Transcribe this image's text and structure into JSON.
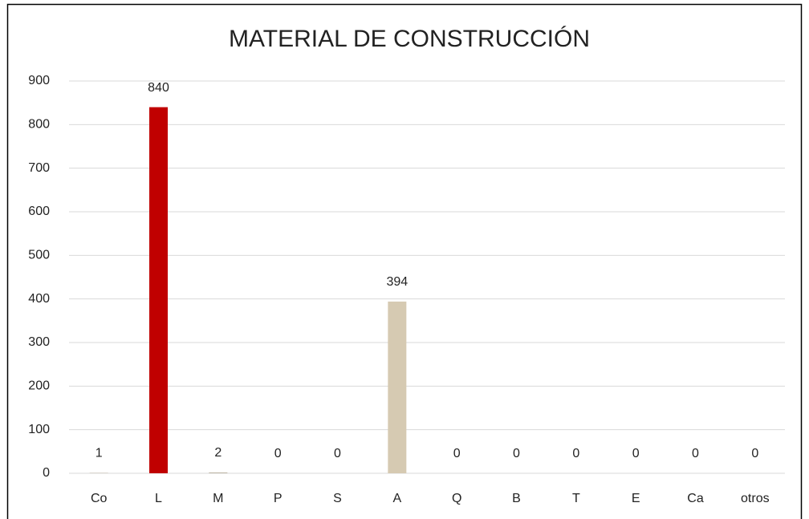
{
  "chart_data": {
    "type": "bar",
    "title": "MATERIAL DE CONSTRUCCIÓN",
    "categories": [
      "Co",
      "L",
      "M",
      "P",
      "S",
      "A",
      "Q",
      "B",
      "T",
      "E",
      "Ca",
      "otros"
    ],
    "values": [
      1,
      840,
      2,
      0,
      0,
      394,
      0,
      0,
      0,
      0,
      0,
      0
    ],
    "colors": [
      "#c0b8a8",
      "#c00000",
      "#c0b8a8",
      "#c0b8a8",
      "#c0b8a8",
      "#d6cab2",
      "#c0b8a8",
      "#c0b8a8",
      "#c0b8a8",
      "#c0b8a8",
      "#c0b8a8",
      "#c0b8a8"
    ],
    "ylim": [
      0,
      900
    ],
    "yticks": [
      0,
      100,
      200,
      300,
      400,
      500,
      600,
      700,
      800,
      900
    ],
    "grid": true
  }
}
